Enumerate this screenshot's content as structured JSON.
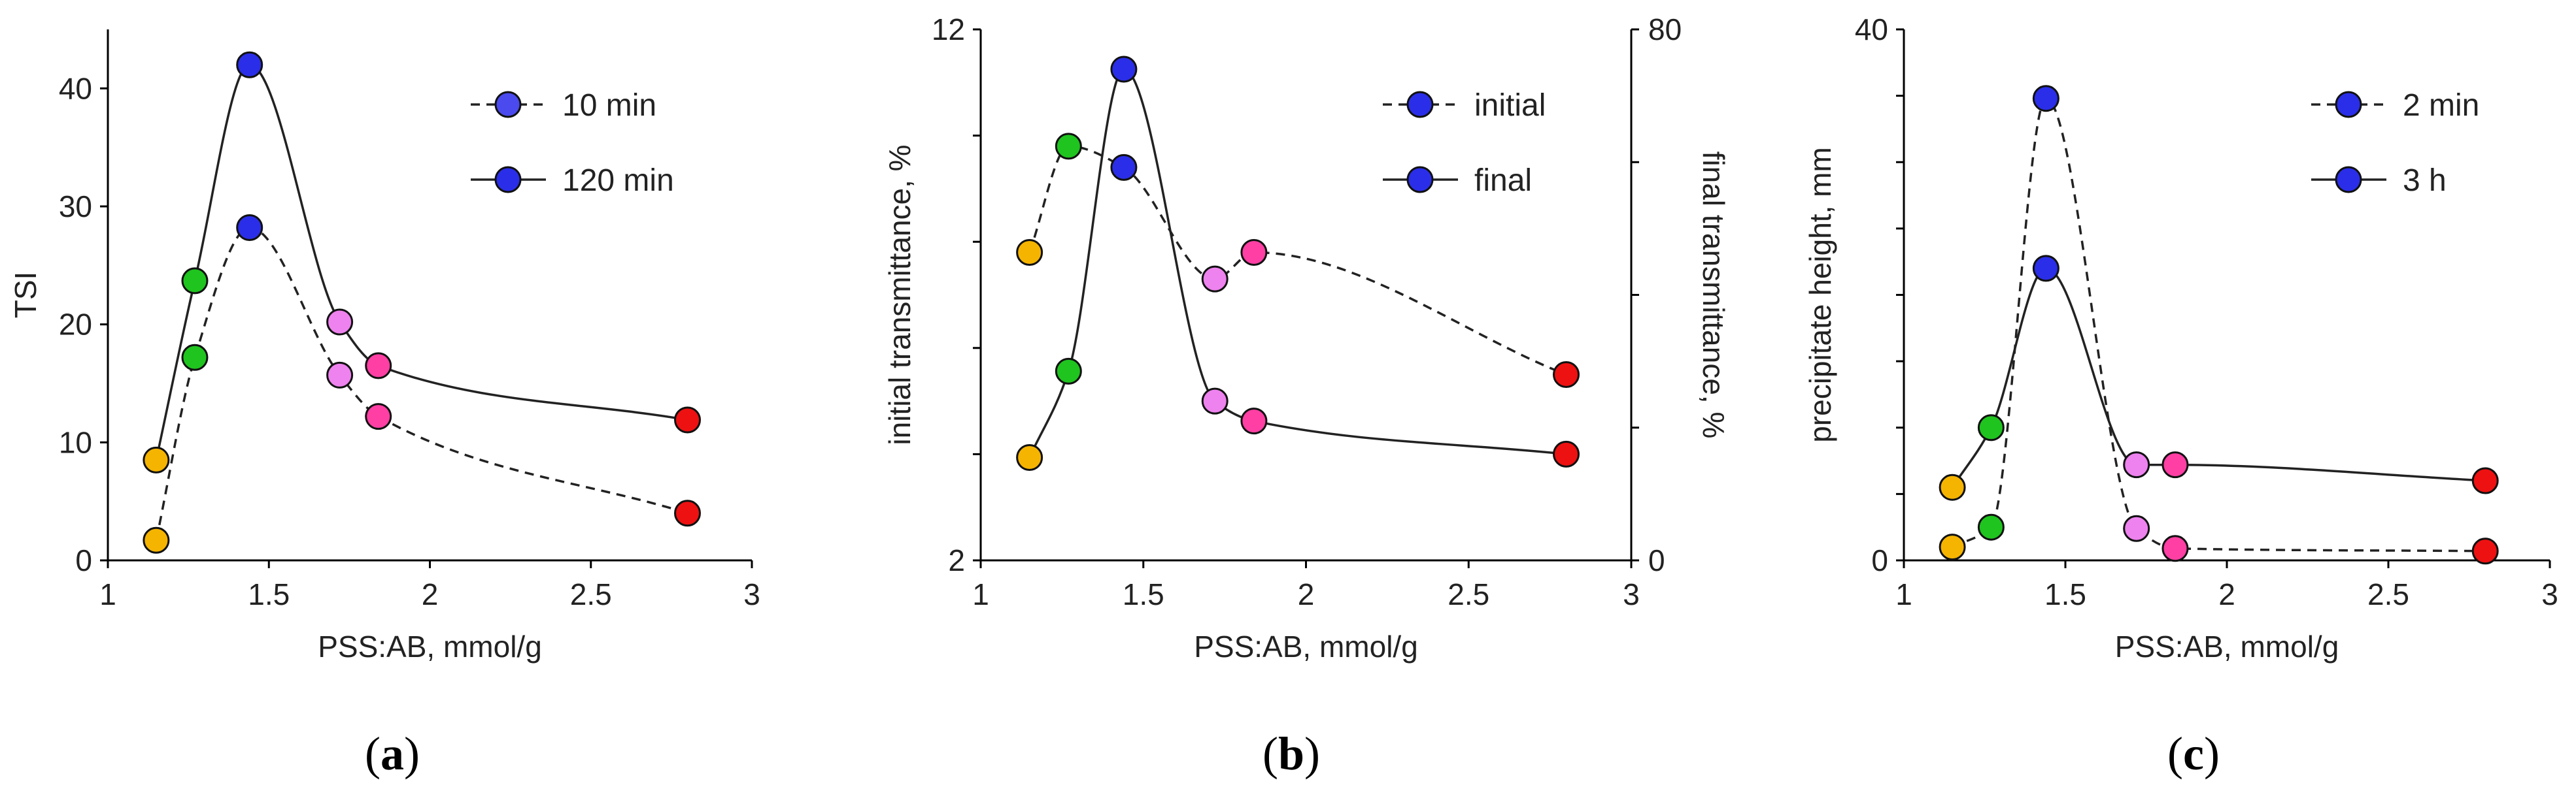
{
  "chart_data": [
    {
      "type": "line",
      "panel_label": "a",
      "xlabel": "PSS:AB, mmol/g",
      "ylabel": "TSI",
      "xlim": [
        1,
        3
      ],
      "ylim": [
        0,
        45
      ],
      "xticks": [
        1,
        1.5,
        2,
        2.5,
        3
      ],
      "xtick_labels": [
        "1",
        "1.5",
        "2",
        "2.5",
        "3"
      ],
      "yticks": [
        0,
        10,
        20,
        30,
        40
      ],
      "ytick_labels": [
        "0",
        "10",
        "20",
        "30",
        "40"
      ],
      "x": [
        1.15,
        1.27,
        1.44,
        1.72,
        1.84,
        2.8
      ],
      "point_colors": [
        "#f5b400",
        "#1fc41f",
        "#2a2ee8",
        "#ee82ee",
        "#ff3fa4",
        "#ee1111"
      ],
      "legend_color_dashed": "#4a4aee",
      "legend_color_solid": "#2a2ee8",
      "legend_position": "top-right",
      "series": [
        {
          "name": "10 min",
          "style": "dashed",
          "values": [
            1.7,
            17.2,
            28.2,
            15.7,
            12.2,
            4.0
          ]
        },
        {
          "name": "120 min",
          "style": "solid",
          "values": [
            8.5,
            23.7,
            42.0,
            20.2,
            16.5,
            11.9
          ]
        }
      ]
    },
    {
      "type": "line",
      "panel_label": "b",
      "xlabel": "PSS:AB, mmol/g",
      "ylabel": "initial transmittance, %",
      "ylabel_right": "final transmittance, %",
      "xlim": [
        1,
        3
      ],
      "ylim": [
        2,
        12
      ],
      "ylim_right": [
        0,
        80
      ],
      "xticks": [
        1,
        1.5,
        2,
        2.5,
        3
      ],
      "xtick_labels": [
        "1",
        "1.5",
        "2",
        "2.5",
        "3"
      ],
      "yticks": [
        2,
        4,
        6,
        8,
        10,
        12
      ],
      "ytick_labels": [
        "2",
        "",
        "",
        "",
        "",
        "12"
      ],
      "yticks_right": [
        0,
        20,
        40,
        60,
        80
      ],
      "ytick_labels_right": [
        "0",
        "",
        "",
        "",
        "80"
      ],
      "x": [
        1.15,
        1.27,
        1.44,
        1.72,
        1.84,
        2.8
      ],
      "point_colors": [
        "#f5b400",
        "#1fc41f",
        "#2a2ee8",
        "#ee82ee",
        "#ff3fa4",
        "#ee1111"
      ],
      "legend_color_dashed": "#2a2ee8",
      "legend_color_solid": "#2a2ee8",
      "legend_position": "top-right",
      "series": [
        {
          "name": "initial",
          "style": "dashed",
          "axis": "left",
          "values": [
            7.8,
            9.8,
            9.4,
            7.3,
            7.8,
            5.5
          ]
        },
        {
          "name": "final",
          "style": "solid",
          "axis": "right",
          "values": [
            15.5,
            28.5,
            74.0,
            24.0,
            21.0,
            16.0
          ]
        }
      ]
    },
    {
      "type": "line",
      "panel_label": "c",
      "xlabel": "PSS:AB, mmol/g",
      "ylabel": "precipitate height, mm",
      "xlim": [
        1,
        3
      ],
      "ylim": [
        0,
        40
      ],
      "xticks": [
        1,
        1.5,
        2,
        2.5,
        3
      ],
      "xtick_labels": [
        "1",
        "1.5",
        "2",
        "2.5",
        "3"
      ],
      "yticks": [
        0,
        5,
        10,
        15,
        20,
        25,
        30,
        35,
        40
      ],
      "ytick_labels": [
        "0",
        "",
        "",
        "",
        "",
        "",
        "",
        "",
        "40"
      ],
      "x": [
        1.15,
        1.27,
        1.44,
        1.72,
        1.84,
        2.8
      ],
      "point_colors": [
        "#f5b400",
        "#1fc41f",
        "#2a2ee8",
        "#ee82ee",
        "#ff3fa4",
        "#ee1111"
      ],
      "legend_color_dashed": "#2a2ee8",
      "legend_color_solid": "#2a2ee8",
      "legend_position": "top-right",
      "series": [
        {
          "name": "2 min",
          "style": "dashed",
          "values": [
            1.0,
            2.5,
            34.8,
            2.4,
            0.9,
            0.7
          ]
        },
        {
          "name": "3 h",
          "style": "solid",
          "values": [
            5.5,
            10.0,
            22.0,
            7.2,
            7.2,
            6.0
          ]
        }
      ]
    }
  ]
}
